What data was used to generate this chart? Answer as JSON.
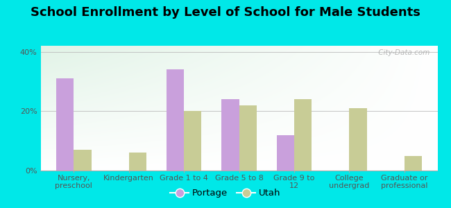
{
  "title": "School Enrollment by Level of School for Male Students",
  "categories": [
    "Nursery,\npreschool",
    "Kindergarten",
    "Grade 1 to 4",
    "Grade 5 to 8",
    "Grade 9 to\n12",
    "College\nundergrad",
    "Graduate or\nprofessional"
  ],
  "portage_values": [
    31.0,
    0.0,
    34.0,
    24.0,
    12.0,
    0.0,
    0.0
  ],
  "utah_values": [
    7.0,
    6.0,
    20.0,
    22.0,
    24.0,
    21.0,
    5.0
  ],
  "portage_color": "#c9a0dc",
  "utah_color": "#c8cc96",
  "background_outer": "#00e8e8",
  "background_plot_topleft": "#d4eedc",
  "background_plot_white": "#ffffff",
  "ylabel_ticks": [
    "0%",
    "20%",
    "40%"
  ],
  "ytick_values": [
    0,
    20,
    40
  ],
  "ylim": [
    0,
    42
  ],
  "bar_width": 0.32,
  "title_fontsize": 13,
  "tick_fontsize": 8,
  "legend_fontsize": 9.5,
  "watermark_text": " City-Data.com"
}
